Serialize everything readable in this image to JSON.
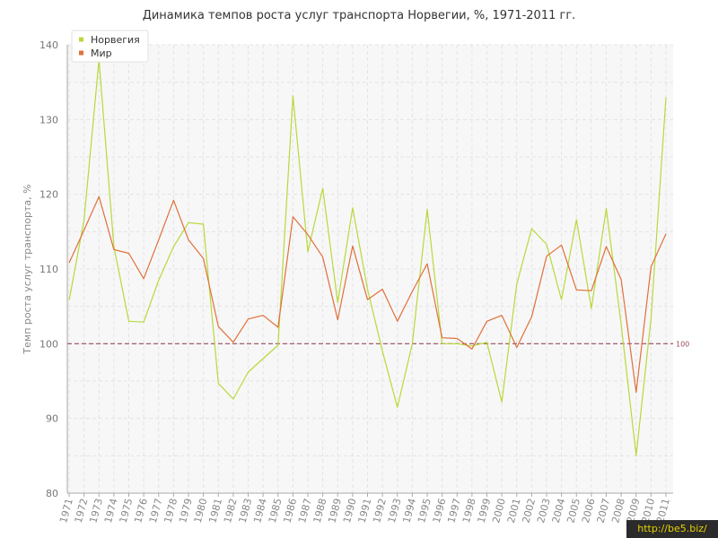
{
  "chart_data": {
    "type": "line",
    "title": "Динамика темпов роста услуг транспорта Норвегии, %, 1971-2011 гг.",
    "xlabel": "",
    "ylabel": "Темп роста услуг транспорта, %",
    "ylim": [
      80,
      140
    ],
    "yticks": [
      80,
      90,
      100,
      110,
      120,
      130,
      140
    ],
    "grid": true,
    "legend_position": "top-left",
    "reference_line": {
      "value": 100,
      "label": "100",
      "color": "#9a4a5a"
    },
    "x": [
      "1971",
      "1972",
      "1973",
      "1974",
      "1975",
      "1976",
      "1977",
      "1978",
      "1979",
      "1980",
      "1981",
      "1982",
      "1983",
      "1984",
      "1985",
      "1986",
      "1987",
      "1988",
      "1989",
      "1990",
      "1991",
      "1992",
      "1993",
      "1994",
      "1995",
      "1996",
      "1997",
      "1998",
      "1999",
      "2000",
      "2001",
      "2002",
      "2003",
      "2004",
      "2005",
      "2006",
      "2007",
      "2008",
      "2009",
      "2010",
      "2011"
    ],
    "series": [
      {
        "name": "Норвегия",
        "color": "#b8d93a",
        "values": [
          105.8,
          116.5,
          138.0,
          113.0,
          103.0,
          102.9,
          108.5,
          113.0,
          116.2,
          116.0,
          94.7,
          92.6,
          96.2,
          98.0,
          99.8,
          133.2,
          112.3,
          120.8,
          105.5,
          118.2,
          107.3,
          99.0,
          91.5,
          100.0,
          118.0,
          100.0,
          100.0,
          99.7,
          100.2,
          92.2,
          108.0,
          115.4,
          113.3,
          105.9,
          116.6,
          104.7,
          118.1,
          102.6,
          85.0,
          103.4,
          133.0
        ]
      },
      {
        "name": "Мир",
        "color": "#e0703a",
        "values": [
          110.8,
          115.2,
          119.7,
          112.6,
          112.1,
          108.7,
          113.9,
          119.2,
          113.9,
          111.4,
          102.3,
          100.2,
          103.3,
          103.8,
          102.2,
          117.0,
          114.6,
          111.6,
          103.2,
          113.1,
          105.9,
          107.3,
          103.0,
          107.0,
          110.7,
          100.8,
          100.7,
          99.3,
          103.0,
          103.8,
          99.5,
          103.6,
          111.7,
          113.2,
          107.2,
          107.1,
          113.0,
          108.6,
          93.5,
          110.3,
          114.7
        ]
      }
    ]
  },
  "watermark": "http://be5.biz/"
}
